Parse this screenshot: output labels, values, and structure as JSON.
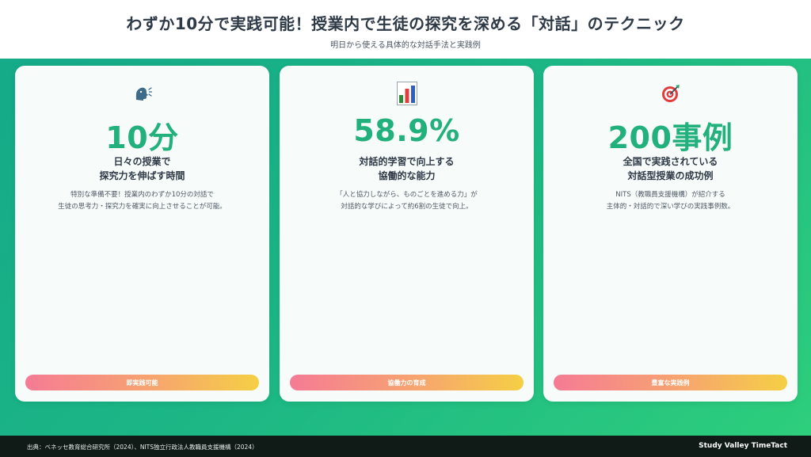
{
  "header": {
    "title": "わずか10分で実践可能！授業内で生徒の探究を深める「対話」のテクニック",
    "subtitle": "明日から使える具体的な対話手法と実践例"
  },
  "cards": [
    {
      "icon": "speaking-head-icon",
      "stat": "10分",
      "heading_line1": "日々の授業で",
      "heading_line2": "探究力を伸ばす時間",
      "desc_line1": "特別な準備不要！授業内のわずか10分の対話で",
      "desc_line2": "生徒の思考力・探究力を確実に向上させることが可能。",
      "button": "即実践可能"
    },
    {
      "icon": "bar-chart-icon",
      "stat": "58.9%",
      "heading_line1": "対話的学習で向上する",
      "heading_line2": "協働的な能力",
      "desc_line1": "「人と協力しながら、ものごとを進める力」が",
      "desc_line2": "対話的な学びによって約6割の生徒で向上。",
      "button": "協働力の育成"
    },
    {
      "icon": "target-icon",
      "stat": "200事例",
      "heading_line1": "全国で実践されている",
      "heading_line2": "対話型授業の成功例",
      "desc_line1": "NITS（教職員支援機構）が紹介する",
      "desc_line2": "主体的・対話的で深い学びの実践事例数。",
      "button": "豊富な実践例"
    }
  ],
  "footer": {
    "source": "出典：ベネッセ教育総合研究所（2024）、NITS独立行政法人教職員支援機構（2024）",
    "brand": "Study Valley TimeTact"
  },
  "colors": {
    "accent": "#22b07c",
    "background_gradient": [
      "#14a889",
      "#2ecf7c"
    ],
    "button_gradient": [
      "#f57b95",
      "#f7a56f",
      "#f5cf45"
    ]
  }
}
